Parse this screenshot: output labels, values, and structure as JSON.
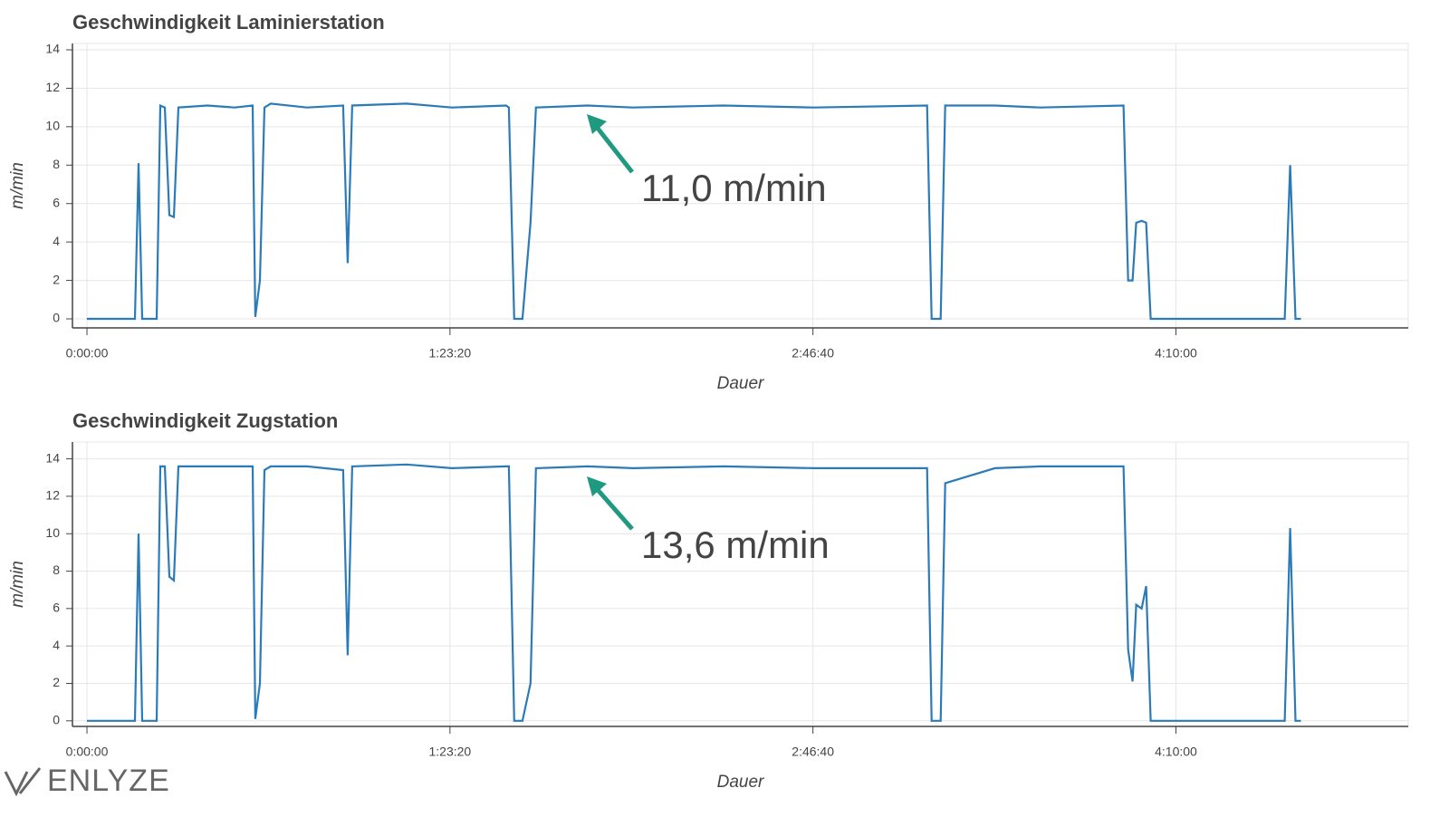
{
  "chart_data": [
    {
      "type": "line",
      "title": "Geschwindigkeit Laminierstation",
      "xlabel": "Dauer",
      "ylabel": "m/min",
      "annotation": "11,0 m/min",
      "color": "#2b7bb9",
      "grid": true,
      "x": [
        0,
        661,
        711,
        761,
        960,
        1010,
        1072,
        1135,
        1197,
        1260,
        1659,
        2033,
        2282,
        2319,
        2382,
        2444,
        2531,
        3030,
        3529,
        3591,
        3653,
        4402,
        5025,
        5773,
        5811,
        5885,
        5998,
        6110,
        6185,
        6895,
        7519,
        8766,
        10013,
        11572,
        11635,
        11759,
        11822,
        12507,
        13131,
        14278,
        14341,
        14403,
        14453,
        14528,
        14590,
        14652,
        16498,
        16573,
        16647,
        16722
      ],
      "values": [
        0,
        0,
        8.1,
        0,
        0,
        11.1,
        11,
        5.4,
        5.3,
        11,
        11.1,
        11,
        11.1,
        0.1,
        2,
        11,
        11.2,
        11,
        11.1,
        2.9,
        11.1,
        11.2,
        11,
        11.1,
        11,
        0,
        0,
        5,
        11,
        11.1,
        11,
        11.1,
        11,
        11.1,
        0,
        0,
        11.1,
        11.1,
        11,
        11.1,
        2,
        2,
        5,
        5.1,
        5,
        0,
        0,
        8,
        0,
        0
      ],
      "xlim": [
        -200,
        18200
      ],
      "ylim": [
        -0.47,
        14.33
      ],
      "xticks": [
        {
          "value": 0,
          "label": "0:00:00"
        },
        {
          "value": 5000,
          "label": "1:23:20"
        },
        {
          "value": 10000,
          "label": "2:46:40"
        },
        {
          "value": 15000,
          "label": "4:10:00"
        }
      ],
      "yticks": [
        0,
        2,
        4,
        6,
        8,
        10,
        12,
        14
      ]
    },
    {
      "type": "line",
      "title": "Geschwindigkeit Zugstation",
      "xlabel": "Dauer",
      "ylabel": "m/min",
      "annotation": "13,6 m/min",
      "color": "#2b7bb9",
      "grid": true,
      "x": [
        0,
        661,
        711,
        761,
        960,
        1010,
        1072,
        1135,
        1197,
        1260,
        1659,
        2033,
        2282,
        2319,
        2382,
        2444,
        2531,
        3030,
        3529,
        3591,
        3653,
        4402,
        5025,
        5773,
        5811,
        5885,
        5998,
        6110,
        6185,
        6895,
        7519,
        8766,
        10013,
        11572,
        11635,
        11759,
        11822,
        12507,
        13131,
        14278,
        14341,
        14403,
        14453,
        14528,
        14590,
        14652,
        16498,
        16573,
        16647,
        16722
      ],
      "values": [
        0,
        0,
        10,
        0,
        0,
        13.6,
        13.6,
        7.7,
        7.5,
        13.6,
        13.6,
        13.6,
        13.6,
        0.1,
        2,
        13.4,
        13.6,
        13.6,
        13.4,
        3.5,
        13.6,
        13.7,
        13.5,
        13.6,
        13.6,
        0,
        0,
        2,
        13.5,
        13.6,
        13.5,
        13.6,
        13.5,
        13.5,
        0,
        0,
        12.7,
        13.5,
        13.6,
        13.6,
        3.8,
        2.1,
        6.2,
        6,
        7.2,
        0,
        0,
        10.3,
        0,
        0
      ],
      "xlim": [
        -200,
        18200
      ],
      "ylim": [
        -0.3,
        14.9
      ],
      "xticks": [
        {
          "value": 0,
          "label": "0:00:00"
        },
        {
          "value": 5000,
          "label": "1:23:20"
        },
        {
          "value": 10000,
          "label": "2:46:40"
        },
        {
          "value": 15000,
          "label": "4:10:00"
        }
      ],
      "yticks": [
        0,
        2,
        4,
        6,
        8,
        10,
        12,
        14
      ]
    }
  ],
  "logo": "ENLYZE"
}
